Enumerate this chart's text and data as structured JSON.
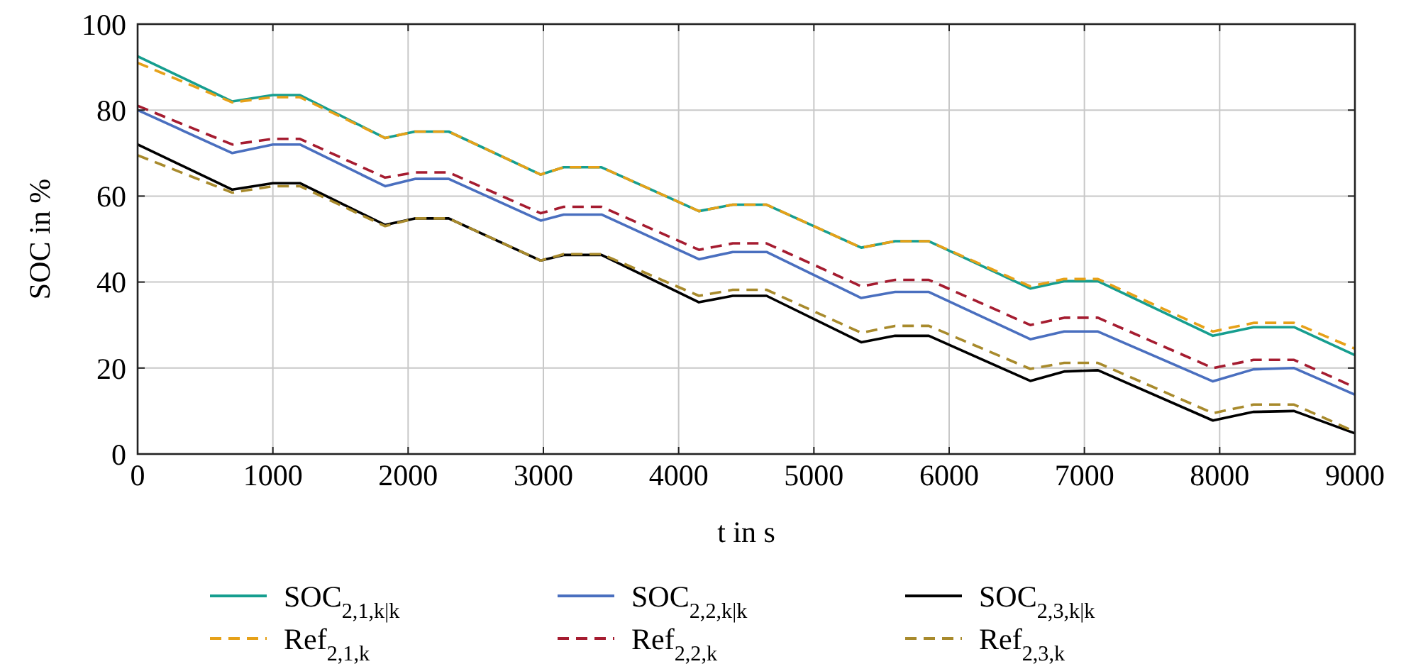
{
  "chart_data": {
    "type": "line",
    "xlabel": "t in s",
    "ylabel": "SOC in %",
    "x": [
      0,
      700,
      1000,
      1200,
      1830,
      2050,
      2300,
      2980,
      3150,
      3430,
      4150,
      4400,
      4650,
      5350,
      5600,
      5850,
      6600,
      6850,
      7100,
      7950,
      8250,
      8550,
      9000
    ],
    "xlim": [
      0,
      9000
    ],
    "xticks": [
      0,
      1000,
      2000,
      3000,
      4000,
      5000,
      6000,
      7000,
      8000,
      9000
    ],
    "ylim": [
      0,
      100
    ],
    "yticks": [
      0,
      20,
      40,
      60,
      80,
      100
    ],
    "grid": true,
    "legend": "bottom",
    "series": [
      {
        "name": "SOC$_{2,1,k|k}$",
        "color": "#169e8f",
        "line_style": "solid",
        "values": [
          92.5,
          82,
          83.5,
          83.5,
          73.5,
          75,
          75,
          65,
          66.7,
          66.7,
          56.5,
          58,
          58,
          48,
          49.5,
          49.5,
          38.5,
          40.2,
          40.2,
          27.5,
          29.5,
          29.5,
          23
        ]
      },
      {
        "name": "SOC$_{2,2,k|k}$",
        "color": "#4a6fbf",
        "line_style": "solid",
        "values": [
          80,
          70,
          72,
          72,
          62.3,
          64,
          64,
          54.3,
          55.7,
          55.7,
          45.3,
          47,
          47,
          36.3,
          37.7,
          37.7,
          26.7,
          28.5,
          28.5,
          16.9,
          19.7,
          20,
          13.8
        ]
      },
      {
        "name": "SOC$_{2,3,k|k}$",
        "color": "#000000",
        "line_style": "solid",
        "values": [
          72,
          61.5,
          63,
          63,
          53.3,
          54.8,
          54.8,
          45,
          46.3,
          46.3,
          35.3,
          36.8,
          36.8,
          26,
          27.5,
          27.5,
          17,
          19.2,
          19.5,
          7.8,
          9.8,
          10,
          4.8
        ]
      },
      {
        "name": "Ref$_{2,1,k}$",
        "color": "#e6a118",
        "line_style": "dashed",
        "values": [
          91,
          81.8,
          83,
          83,
          73.5,
          75,
          75,
          65,
          66.7,
          66.7,
          56.5,
          58,
          58,
          48,
          49.5,
          49.5,
          39,
          40.7,
          40.7,
          28.5,
          30.5,
          30.5,
          24.5
        ]
      },
      {
        "name": "Ref$_{2,2,k}$",
        "color": "#a51c30",
        "line_style": "dashed",
        "values": [
          81,
          72,
          73.3,
          73.3,
          64.3,
          65.5,
          65.5,
          56,
          57.5,
          57.5,
          47.5,
          49,
          49,
          39,
          40.5,
          40.5,
          30,
          31.7,
          31.7,
          20,
          21.9,
          21.9,
          15.5
        ]
      },
      {
        "name": "Ref$_{2,3,k}$",
        "color": "#a88a2c",
        "line_style": "dashed",
        "values": [
          69.5,
          60.8,
          62.3,
          62.3,
          53,
          54.8,
          54.8,
          45,
          46.5,
          46.5,
          36.8,
          38.2,
          38.2,
          28.2,
          29.8,
          29.8,
          19.8,
          21.2,
          21.2,
          9.5,
          11.5,
          11.5,
          5.2
        ]
      }
    ]
  }
}
